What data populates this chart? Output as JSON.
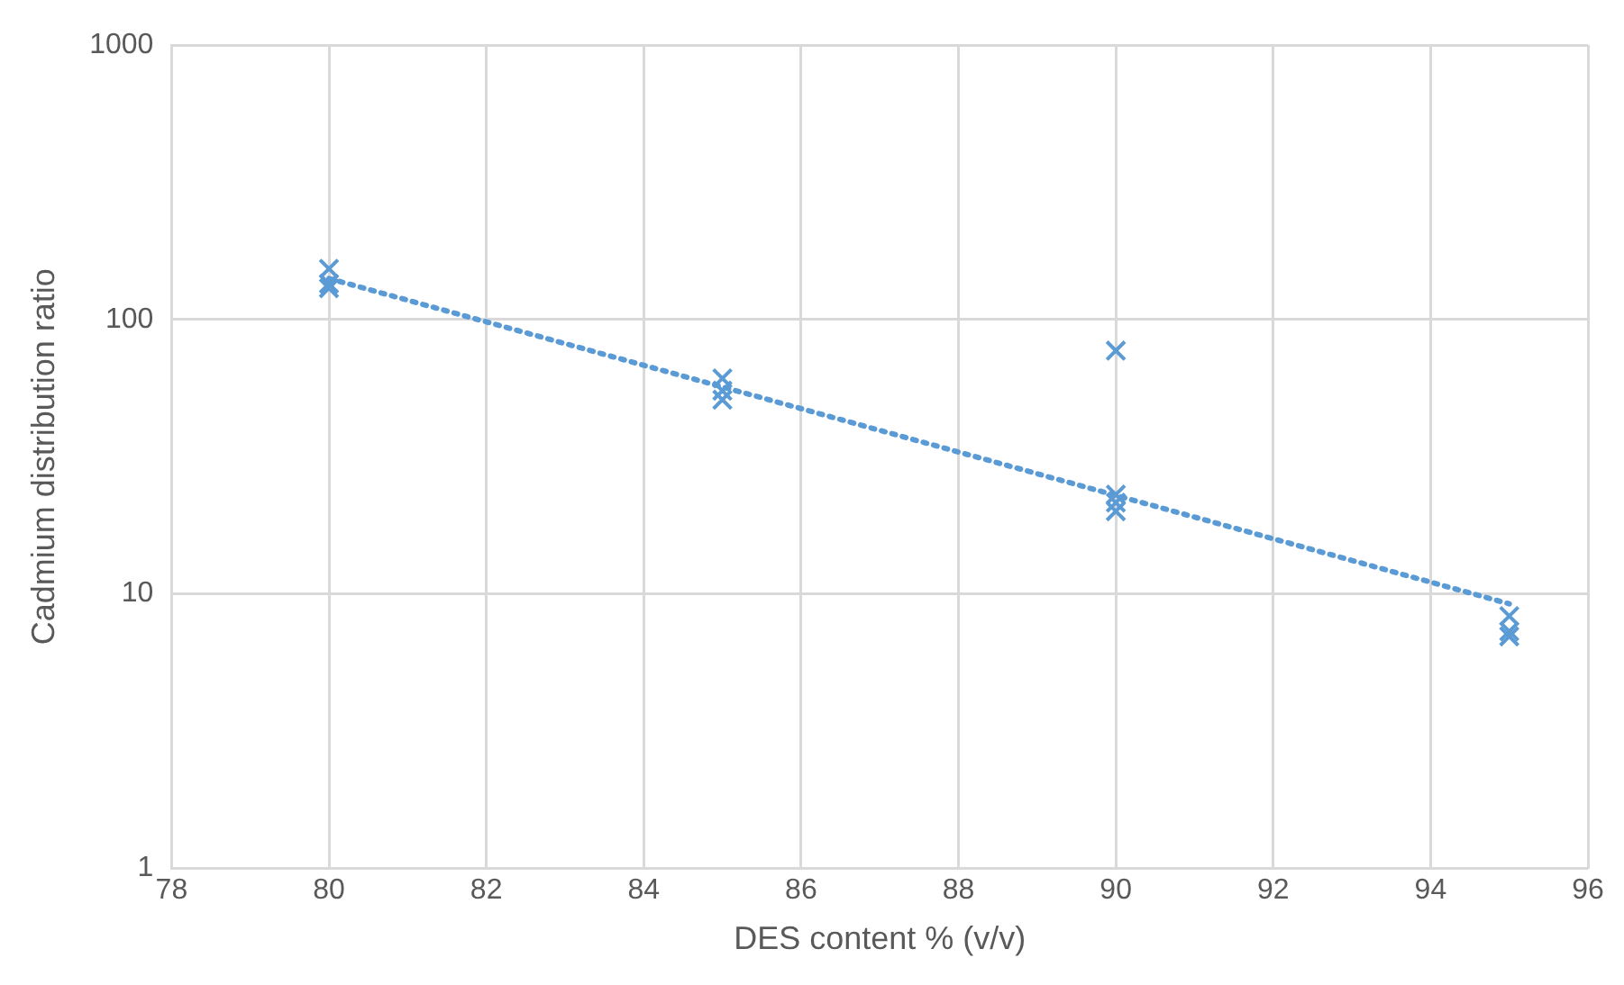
{
  "chart_data": {
    "type": "scatter",
    "xlabel": "DES content % (v/v)",
    "ylabel": "Cadmium distribution ratio",
    "log": "y",
    "xlim": [
      78,
      96
    ],
    "xticks": [
      78,
      80,
      82,
      84,
      86,
      88,
      90,
      92,
      94,
      96
    ],
    "ylim": [
      1,
      1000
    ],
    "yticks": [
      1,
      10,
      100,
      1000
    ],
    "grid": true,
    "legend": false,
    "marker": "cross",
    "series": [
      {
        "color": "#5b9bd5",
        "x": [
          80,
          80,
          80,
          85,
          85,
          85,
          90,
          90,
          90,
          90,
          95,
          95,
          95
        ],
        "values": [
          153,
          135,
          130,
          61,
          55,
          51,
          77,
          23,
          21.5,
          20,
          8.3,
          7.3,
          7
        ]
      },
      {
        "type": "line",
        "color": "#5b9bd5",
        "line_style": "dotted",
        "marker": "none",
        "x": [
          80,
          95
        ],
        "values": [
          141,
          9.2
        ]
      }
    ]
  }
}
